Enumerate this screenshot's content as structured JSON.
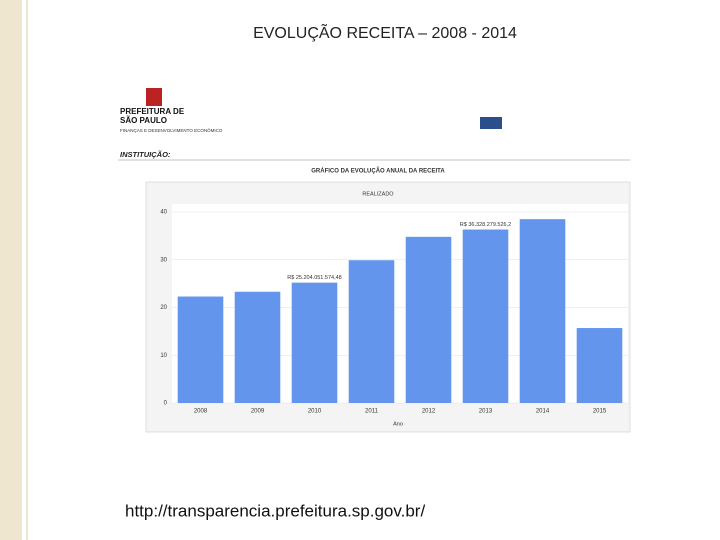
{
  "slide_title": "EVOLUÇÃO RECEITA – 2008 - 2014",
  "url": "http://transparencia.prefeitura.sp.gov.br/",
  "logo": {
    "line1": "PREFEITURA DE",
    "line2": "SÃO PAULO",
    "line3": "FINANÇAS E DESENVOLVIMENTO ECONÔMICO"
  },
  "institution_label": "INSTITUIÇÃO:",
  "chart_data": {
    "type": "bar",
    "title": "GRÁFICO DA EVOLUÇÃO ANUAL DA RECEITA",
    "subtitle": "REALIZADO",
    "x_label": "Ano",
    "categories": [
      "2008",
      "2009",
      "2010",
      "2011",
      "2012",
      "2013",
      "2014",
      "2015"
    ],
    "values": [
      22.3,
      23.3,
      25.20405157448,
      29.9,
      34.8,
      36.3282795262,
      38.5,
      15.7
    ],
    "value_labels": [
      null,
      null,
      "R$ 25.204.051.574,48",
      null,
      null,
      "R$ 36.328.279.526,2",
      null,
      null
    ],
    "color": "#6495ed",
    "ylim": [
      0,
      40
    ],
    "yticks": [
      0,
      10,
      20,
      30,
      40
    ],
    "grid": true
  }
}
